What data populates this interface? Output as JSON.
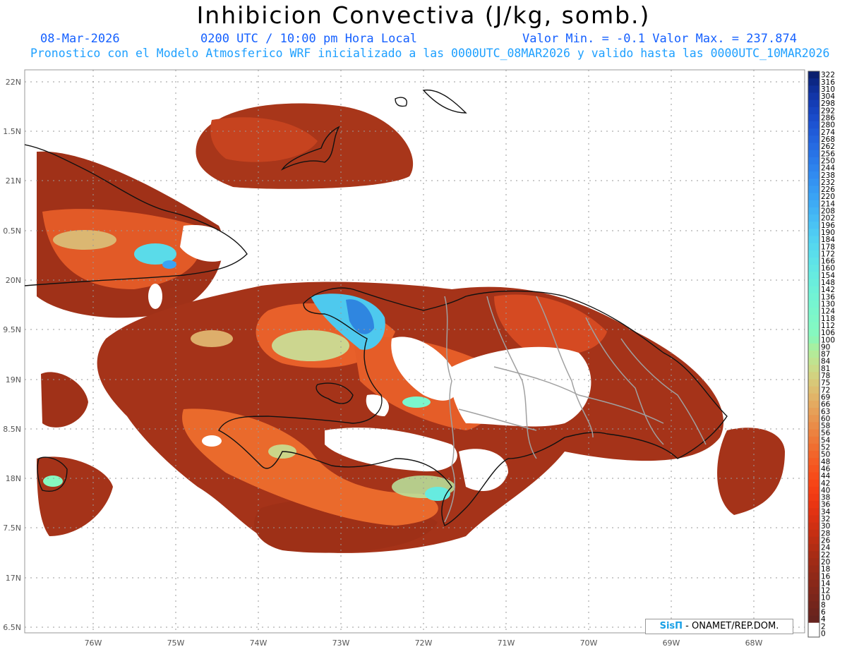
{
  "header": {
    "title": "Inhibicion Convectiva (J/kg, somb.)",
    "date": "08-Mar-2026",
    "time": "0200 UTC / 10:00 pm Hora Local",
    "minmax": "Valor Min. = -0.1  Valor Max. = 237.874",
    "forecast": "Pronostico con el Modelo Atmosferico WRF inicializado a las 0000UTC_08MAR2026 y valido hasta las  0000UTC_10MAR2026"
  },
  "axes": {
    "lat_labels": [
      "22N",
      "1.5N",
      "21N",
      "0.5N",
      "20N",
      "9.5N",
      "19N",
      "8.5N",
      "18N",
      "7.5N",
      "17N",
      "6.5N"
    ],
    "lon_labels": [
      "76W",
      "75W",
      "74W",
      "73W",
      "72W",
      "71W",
      "70W",
      "69W",
      "68W"
    ]
  },
  "colorbar": {
    "labels": [
      "322",
      "316",
      "310",
      "304",
      "298",
      "292",
      "286",
      "280",
      "274",
      "268",
      "262",
      "256",
      "250",
      "244",
      "238",
      "232",
      "226",
      "220",
      "214",
      "208",
      "202",
      "196",
      "190",
      "184",
      "178",
      "172",
      "166",
      "160",
      "154",
      "148",
      "142",
      "136",
      "130",
      "124",
      "118",
      "112",
      "106",
      "100",
      "90",
      "87",
      "84",
      "81",
      "78",
      "75",
      "72",
      "69",
      "66",
      "63",
      "60",
      "58",
      "56",
      "54",
      "52",
      "50",
      "48",
      "46",
      "44",
      "42",
      "40",
      "38",
      "36",
      "34",
      "32",
      "30",
      "28",
      "26",
      "24",
      "22",
      "20",
      "18",
      "16",
      "14",
      "12",
      "10",
      "8",
      "6",
      "4",
      "2",
      "0"
    ],
    "colors": [
      "#0a1f6e",
      "#0c2785",
      "#0f2f98",
      "#1236a8",
      "#143db5",
      "#1744c0",
      "#1a4bca",
      "#1d53d2",
      "#205bd8",
      "#2363dd",
      "#266be2",
      "#2873e6",
      "#2b7bea",
      "#2e83ed",
      "#318bf0",
      "#3493f2",
      "#379bf3",
      "#3aa3f4",
      "#3eabf5",
      "#42b3f5",
      "#46bbf5",
      "#4ac3f4",
      "#4ecbf3",
      "#52d2f1",
      "#56d8ee",
      "#5adeeb",
      "#5ee3e8",
      "#62e7e4",
      "#66ebe0",
      "#6aeedc",
      "#6ef1d8",
      "#72f3d4",
      "#76f5d0",
      "#7af6cc",
      "#7ef7c8",
      "#82f8c4",
      "#86f8c0",
      "#90f5b4",
      "#a6f0a2",
      "#b4ea98",
      "#c0e390",
      "#cadb88",
      "#d2d280",
      "#d8c878",
      "#ddbe70",
      "#e1b468",
      "#e4aa60",
      "#e6a058",
      "#e89650",
      "#ea8c48",
      "#ec8240",
      "#ee7838",
      "#f06e30",
      "#f2652a",
      "#f45c24",
      "#f5541f",
      "#f64c1a",
      "#f64516",
      "#f43f14",
      "#f03a13",
      "#ea3612",
      "#e23312",
      "#da3112",
      "#d03012",
      "#c62f12",
      "#bc2e13",
      "#b22d14",
      "#a82c15",
      "#a02b16",
      "#982a17",
      "#902918",
      "#892819",
      "#82271a",
      "#7b261b",
      "#74251c",
      "#6d241d",
      "#66231e",
      "#ffffff",
      "#ffffff"
    ]
  },
  "credit": {
    "brand": "SisΠ",
    "text": " - ONAMET/REP.DOM."
  },
  "icons": {
    "credit_logo": "sispi-logo"
  }
}
